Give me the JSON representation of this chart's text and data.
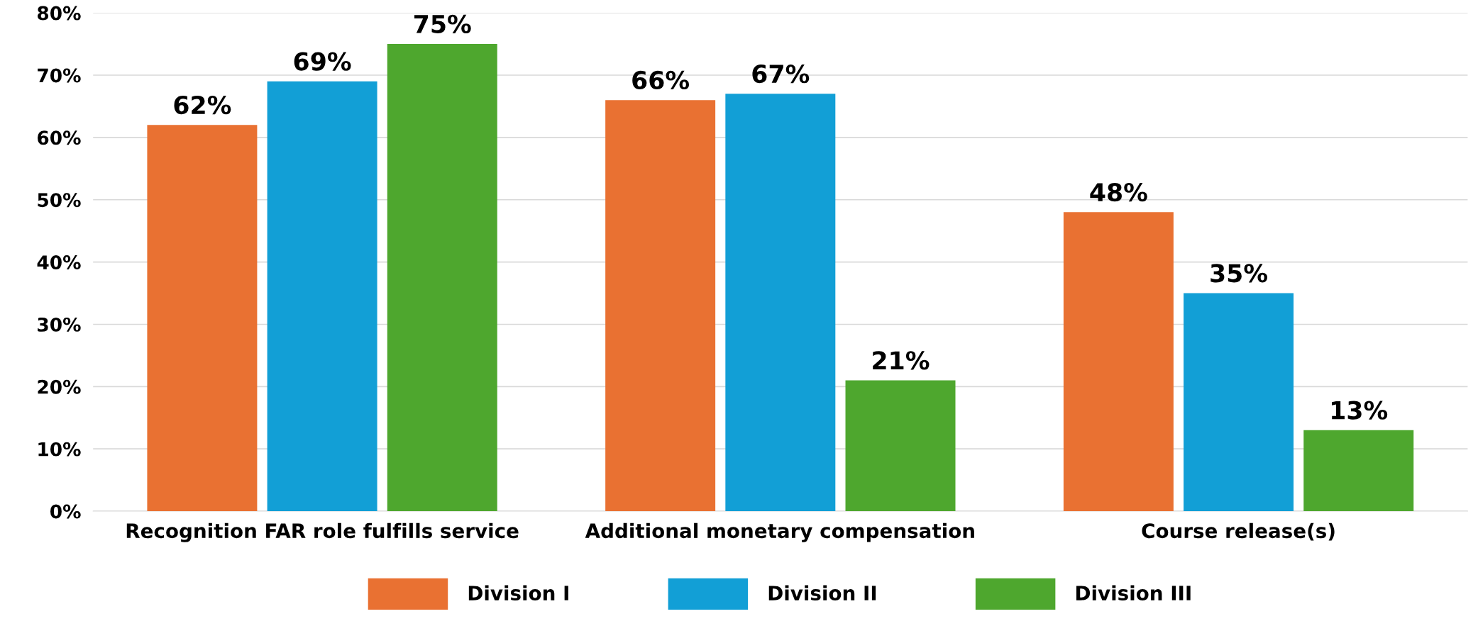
{
  "chart_data": {
    "type": "bar",
    "categories": [
      "Recognition FAR role fulfills service",
      "Additional monetary compensation",
      "Course release(s)"
    ],
    "series": [
      {
        "name": "Division I",
        "color": "#e97132",
        "values": [
          62,
          66,
          48
        ]
      },
      {
        "name": "Division II",
        "color": "#129fd6",
        "values": [
          69,
          67,
          35
        ]
      },
      {
        "name": "Division III",
        "color": "#4ea72e",
        "values": [
          75,
          21,
          13
        ]
      }
    ],
    "ylim": [
      0,
      80
    ],
    "yticks": [
      {
        "value": 0,
        "label": "0%"
      },
      {
        "value": 10,
        "label": "10%"
      },
      {
        "value": 20,
        "label": "20%"
      },
      {
        "value": 30,
        "label": "30%"
      },
      {
        "value": 40,
        "label": "40%"
      },
      {
        "value": 50,
        "label": "50%"
      },
      {
        "value": 60,
        "label": "60%"
      },
      {
        "value": 70,
        "label": "70%"
      },
      {
        "value": 80,
        "label": "80%"
      }
    ],
    "value_labels": [
      [
        "62%",
        "66%",
        "48%"
      ],
      [
        "69%",
        "67%",
        "35%"
      ],
      [
        "75%",
        "21%",
        "13%"
      ]
    ],
    "grid": "y",
    "legend": "bottom"
  }
}
